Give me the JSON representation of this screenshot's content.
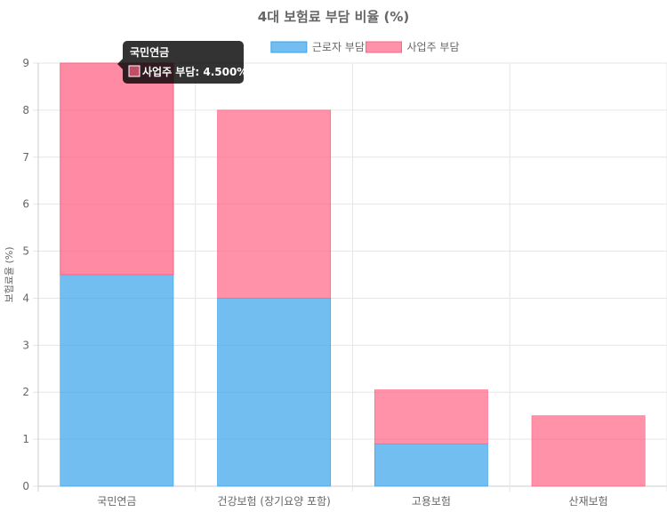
{
  "chart_data": {
    "type": "bar",
    "stacked": true,
    "title": "4대 보험료 부담 비율 (%)",
    "xlabel": "",
    "ylabel": "보험료율 (%)",
    "categories": [
      "국민연금",
      "건강보험 (장기요양 포함)",
      "고용보험",
      "산재보험"
    ],
    "series": [
      {
        "name": "근로자 부담",
        "values": [
          4.5,
          4.0,
          0.9,
          0
        ],
        "color": "#36A2EB"
      },
      {
        "name": "사업주 부담",
        "values": [
          4.5,
          4.0,
          1.15,
          1.5
        ],
        "color": "#FF6384"
      }
    ],
    "ylim": [
      0,
      9
    ],
    "yticks": [
      0,
      1,
      2,
      3,
      4,
      5,
      6,
      7,
      8,
      9
    ],
    "grid": true,
    "legend": "top",
    "tooltip": {
      "title": "국민연금",
      "label": "사업주 부담: 4.500%"
    }
  }
}
